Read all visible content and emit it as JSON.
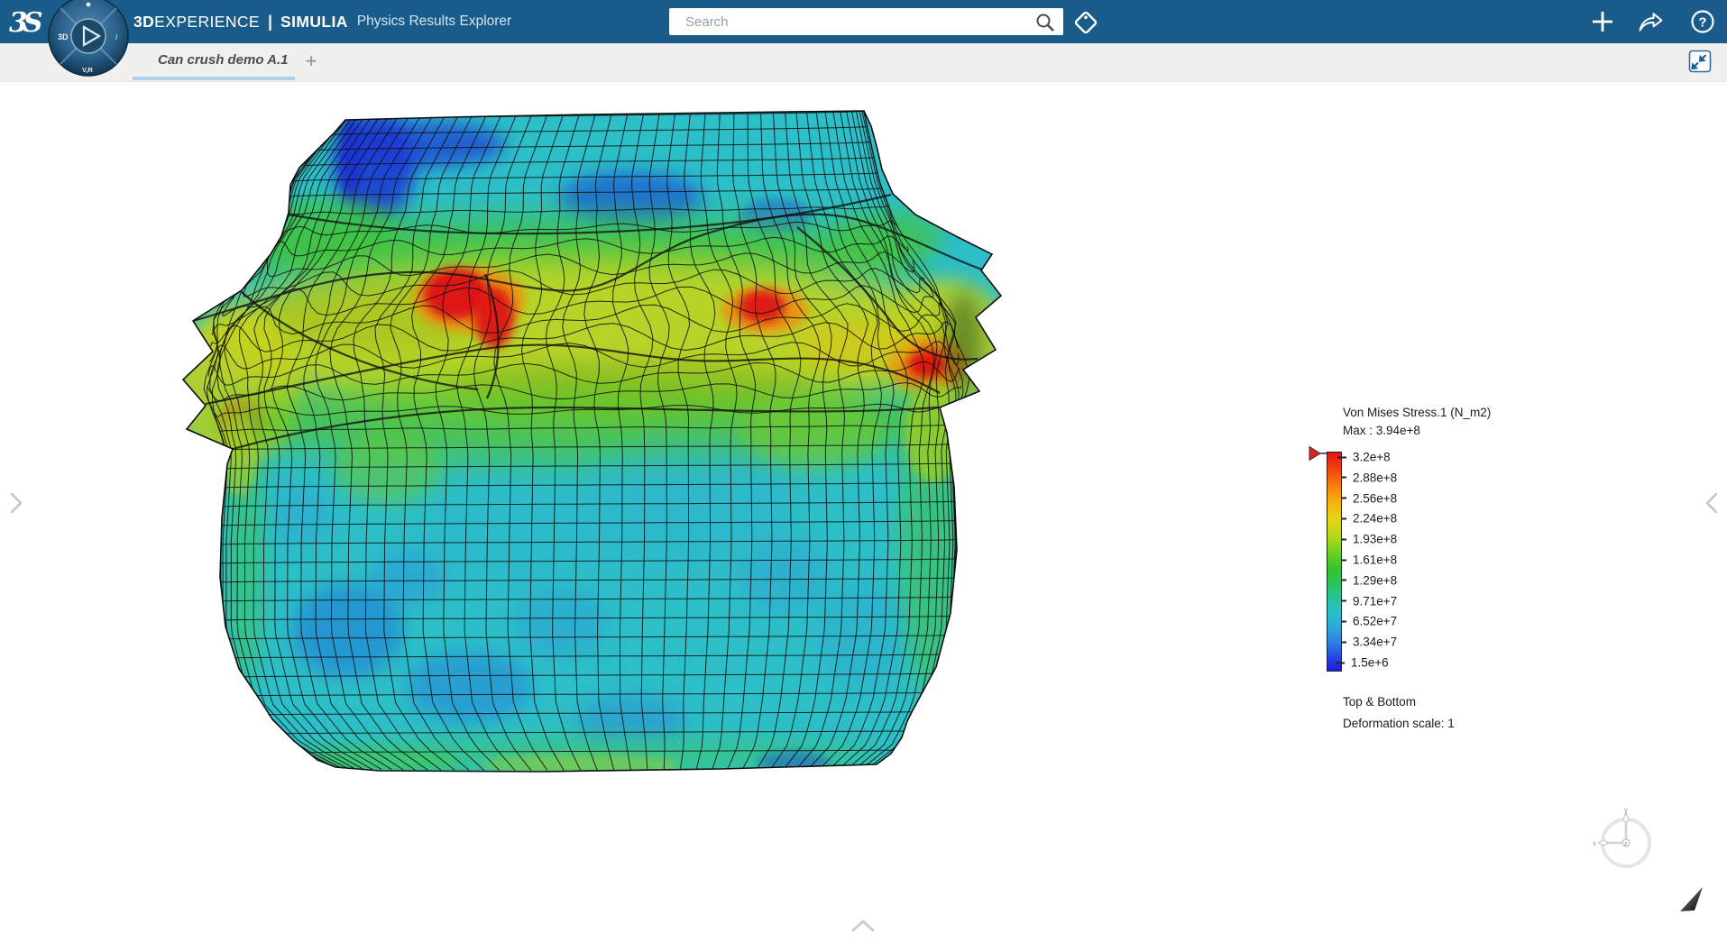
{
  "app": {
    "logo_glyph": "3S",
    "brand": {
      "bold": "3D",
      "rest": "EXPERIENCE",
      "divider": "|",
      "product": "SIMULIA",
      "name": "Physics Results Explorer"
    },
    "compass": {
      "left_label": "3D",
      "bottom_label": "V,R",
      "right_label": "i"
    },
    "icons": {
      "help_glyph": "?"
    }
  },
  "search": {
    "placeholder": "Search"
  },
  "tab_bar": {
    "tabs": [
      {
        "label": "Can crush demo A.1",
        "active": true
      }
    ],
    "add_label": "+"
  },
  "legend": {
    "title": "Von Mises Stress.1 (N_m2)",
    "max_label": "Max : 3.94e+8",
    "levels": [
      "3.2e+8",
      "2.88e+8",
      "2.56e+8",
      "2.24e+8",
      "1.93e+8",
      "1.61e+8",
      "1.29e+8",
      "9.71e+7",
      "6.52e+7",
      "3.34e+7",
      "1.5e+6"
    ],
    "view_label": "Top & Bottom",
    "deformation_label": "Deformation scale: 1",
    "max_marker_color": "#e02020"
  },
  "triad": {
    "x": "x",
    "y": "y",
    "z": "z"
  },
  "colors": {
    "topbar": "#1a5c89",
    "tab_underline": "#aad3f2",
    "mesh_base": "#2dbfc8"
  },
  "chart_data": {
    "type": "heatmap",
    "title": "Von Mises Stress.1 (N_m2)",
    "legend_position": "right",
    "max_value": "3.94e+8",
    "scale_levels": [
      "3.2e+8",
      "2.88e+8",
      "2.56e+8",
      "2.24e+8",
      "1.93e+8",
      "1.61e+8",
      "1.29e+8",
      "9.71e+7",
      "6.52e+7",
      "3.34e+7",
      "1.5e+6"
    ],
    "colormap": "rainbow (red=high, blue=low)",
    "annotations": [
      "Top & Bottom",
      "Deformation scale: 1"
    ]
  }
}
